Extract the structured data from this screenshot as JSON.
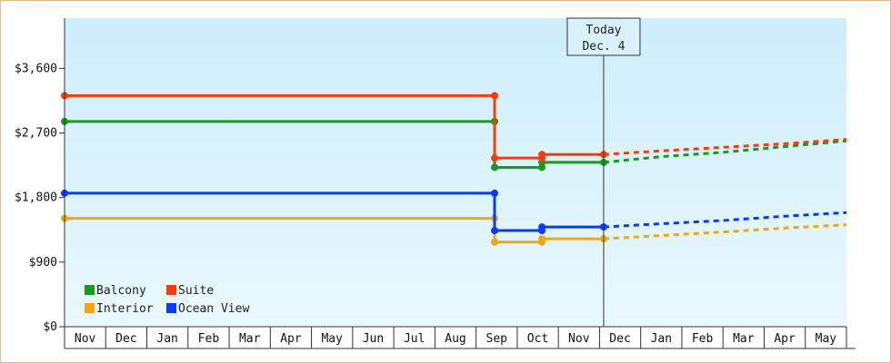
{
  "chart_data": {
    "type": "line",
    "today_label": [
      "Today",
      "Dec. 4"
    ],
    "y_ticks": [
      "$0",
      "$900",
      "$1,800",
      "$2,700",
      "$3,600"
    ],
    "ylim": [
      0,
      4300
    ],
    "months": [
      "Nov",
      "Dec",
      "Jan",
      "Feb",
      "Mar",
      "Apr",
      "May",
      "Jun",
      "Jul",
      "Aug",
      "Sep",
      "Oct",
      "Nov",
      "Dec",
      "Jan",
      "Feb",
      "Mar",
      "Apr",
      "May"
    ],
    "x_range": [
      0,
      19
    ],
    "today_x": 13.1,
    "colors": {
      "Balcony": "#1a9a1a",
      "Suite": "#ff3a0a",
      "Interior": "#f5a514",
      "Ocean View": "#0a3aff",
      "background_top": "#cdeefb",
      "background_bottom": "#eaf8fe",
      "axis": "#333333"
    },
    "series": [
      {
        "name": "Balcony",
        "points": [
          [
            0,
            2860
          ],
          [
            10.45,
            2860
          ],
          [
            10.45,
            2220
          ],
          [
            11.6,
            2220
          ],
          [
            11.6,
            2290
          ],
          [
            13.1,
            2290
          ]
        ],
        "projection": [
          [
            13.1,
            2290
          ],
          [
            14.5,
            2370
          ],
          [
            16.0,
            2430
          ],
          [
            17.5,
            2510
          ],
          [
            19.0,
            2590
          ]
        ]
      },
      {
        "name": "Suite",
        "points": [
          [
            0,
            3220
          ],
          [
            10.45,
            3220
          ],
          [
            10.45,
            2350
          ],
          [
            11.6,
            2350
          ],
          [
            11.6,
            2400
          ],
          [
            13.1,
            2400
          ]
        ],
        "projection": [
          [
            13.1,
            2400
          ],
          [
            14.5,
            2450
          ],
          [
            16.0,
            2500
          ],
          [
            17.5,
            2550
          ],
          [
            19.0,
            2610
          ]
        ]
      },
      {
        "name": "Interior",
        "points": [
          [
            0,
            1510
          ],
          [
            10.45,
            1510
          ],
          [
            10.45,
            1180
          ],
          [
            11.6,
            1180
          ],
          [
            11.6,
            1225
          ],
          [
            13.1,
            1225
          ]
        ],
        "projection": [
          [
            13.1,
            1225
          ],
          [
            14.5,
            1270
          ],
          [
            16.0,
            1320
          ],
          [
            17.5,
            1375
          ],
          [
            19.0,
            1420
          ]
        ]
      },
      {
        "name": "Ocean View",
        "points": [
          [
            0,
            1860
          ],
          [
            10.45,
            1860
          ],
          [
            10.45,
            1340
          ],
          [
            11.6,
            1340
          ],
          [
            11.6,
            1390
          ],
          [
            13.1,
            1390
          ]
        ],
        "projection": [
          [
            13.1,
            1390
          ],
          [
            14.5,
            1435
          ],
          [
            16.0,
            1480
          ],
          [
            17.5,
            1540
          ],
          [
            19.0,
            1590
          ]
        ]
      }
    ],
    "legend": [
      "Balcony",
      "Suite",
      "Interior",
      "Ocean View"
    ],
    "legend_placement": "bottom-left"
  }
}
